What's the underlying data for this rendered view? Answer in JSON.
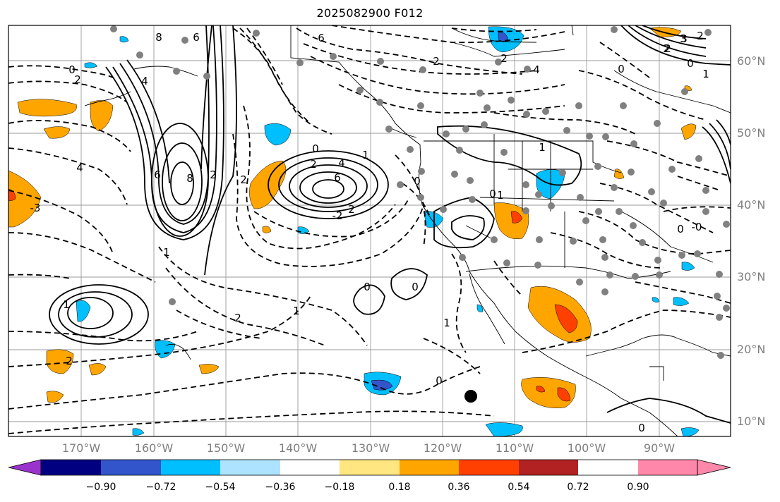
{
  "title": "2025082900 F012",
  "lat_labels": [
    "60°N",
    "50°N",
    "40°N",
    "30°N",
    "20°N",
    "10°N"
  ],
  "lon_labels": [
    "170°W",
    "160°W",
    "150°W",
    "140°W",
    "130°W",
    "120°W",
    "110°W",
    "100°W",
    "90°W"
  ],
  "colorbar": {
    "tick_labels": [
      "−0.90",
      "−0.72",
      "−0.54",
      "−0.36",
      "−0.18",
      "0.18",
      "0.36",
      "0.54",
      "0.72",
      "0.90"
    ],
    "colors": [
      "#9933cc",
      "#000080",
      "#3355cc",
      "#00bfff",
      "#aee3ff",
      "#ffffff",
      "#ffe680",
      "#ffa500",
      "#ff4000",
      "#b22222",
      "#ff88aa"
    ]
  },
  "contour_labels": [
    "8",
    "6",
    "6",
    "4",
    "2",
    "0",
    "2",
    "4",
    "3",
    "2",
    "0",
    "1",
    "2",
    "-3",
    "4",
    "6",
    "8",
    "2",
    "0",
    "2",
    "4",
    "6",
    "-2",
    "2",
    "1",
    "1",
    "0",
    "0",
    "0",
    "1",
    "2",
    "1",
    "2",
    "1",
    "1",
    "-0",
    "0",
    "2",
    "0",
    "0",
    "2",
    "3",
    "2",
    "1",
    "0",
    "0"
  ],
  "fill_colors": {
    "orange": "#ffa500",
    "red": "#ff4000",
    "blue": "#00bfff",
    "darkblue": "#3355cc"
  }
}
